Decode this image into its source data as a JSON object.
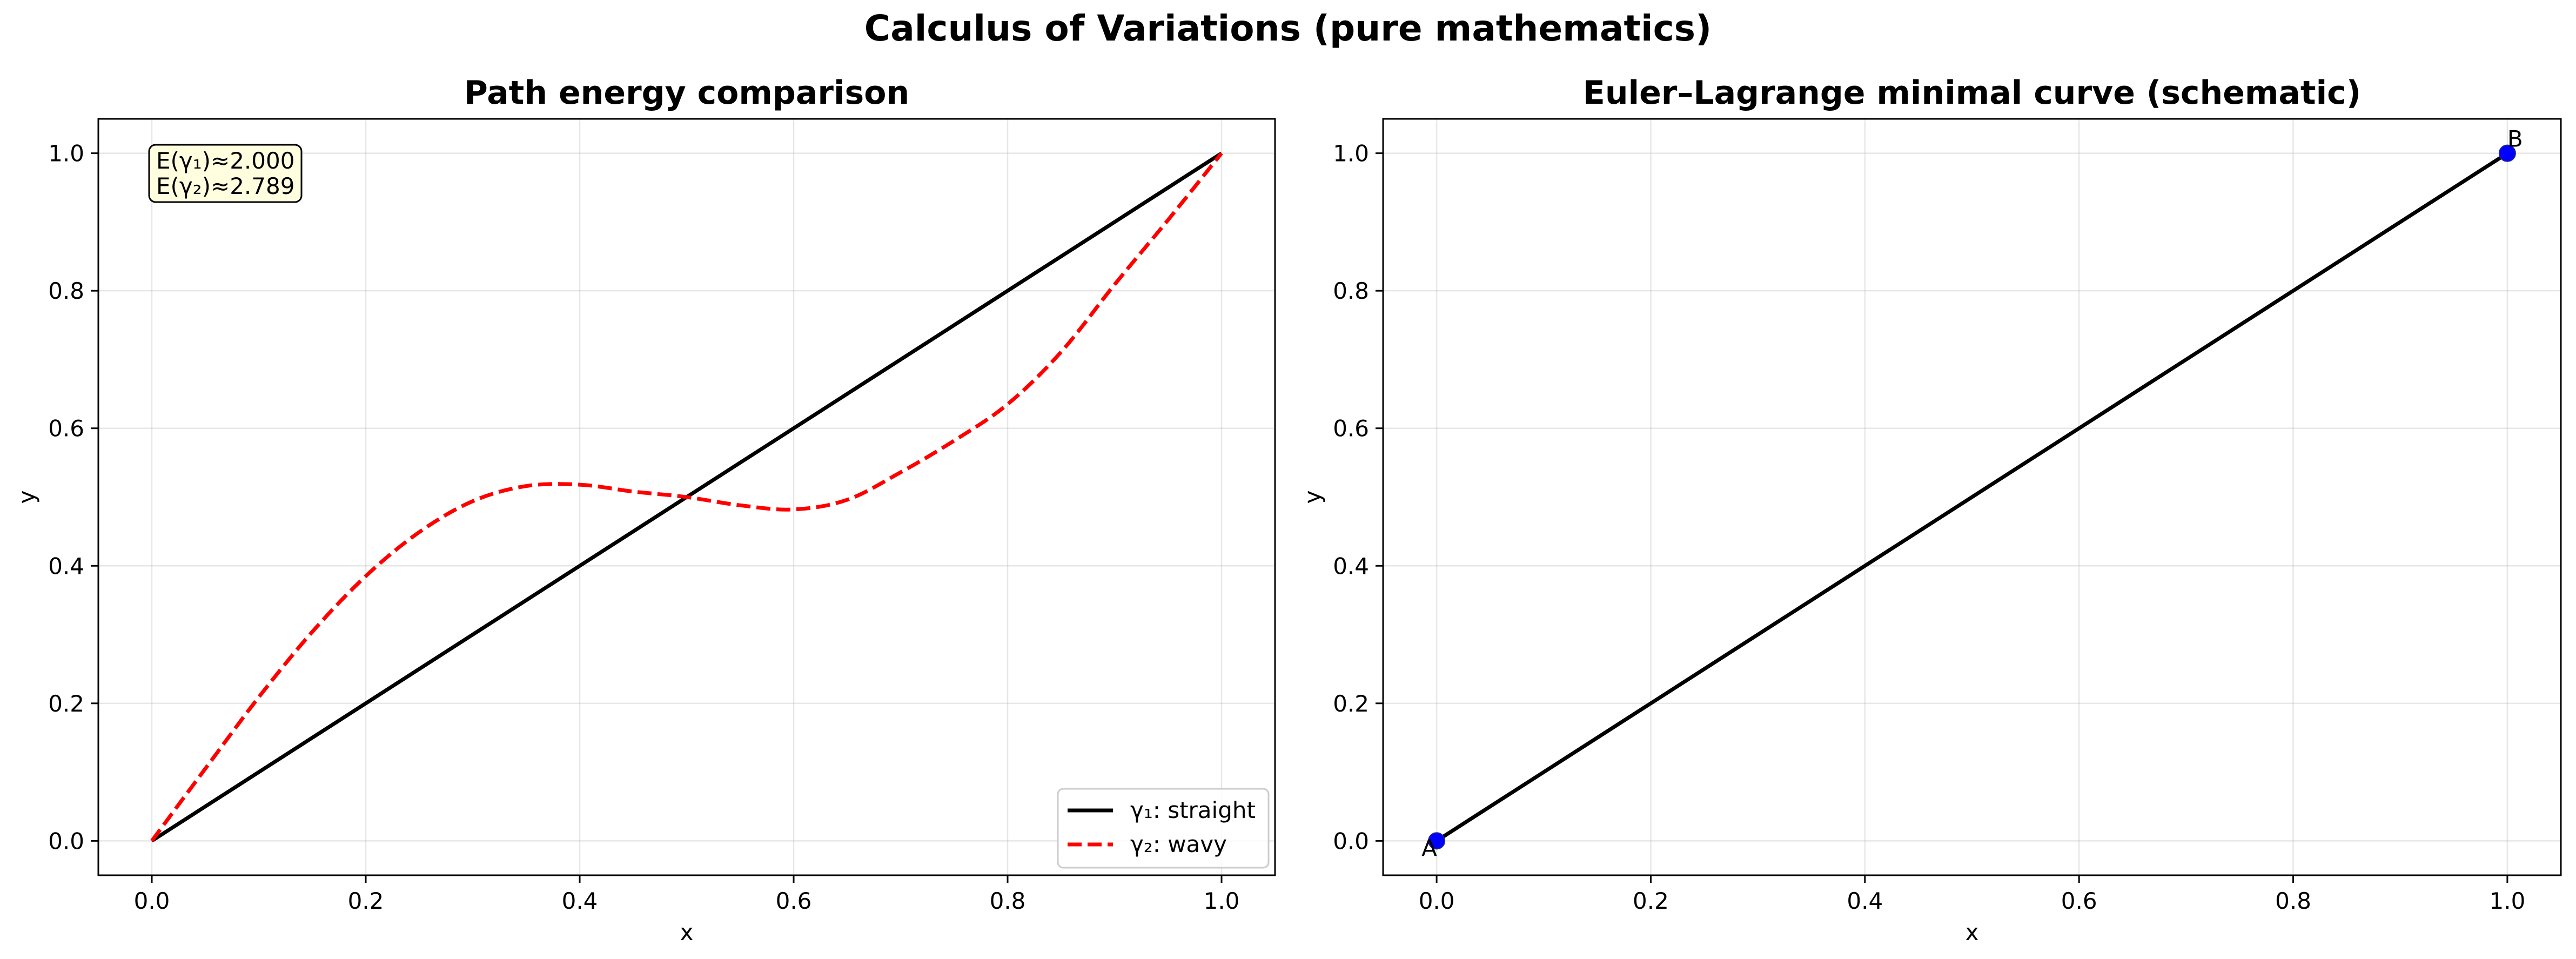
{
  "figure": {
    "suptitle": "Calculus of Variations (pure mathematics)"
  },
  "chart_data": [
    {
      "type": "line",
      "title": "Path energy comparison",
      "xlabel": "x",
      "ylabel": "y",
      "xlim": [
        -0.05,
        1.05
      ],
      "ylim": [
        -0.05,
        1.05
      ],
      "xticks": [
        0.0,
        0.2,
        0.4,
        0.6,
        0.8,
        1.0
      ],
      "yticks": [
        0.0,
        0.2,
        0.4,
        0.6,
        0.8,
        1.0
      ],
      "tick_labels": [
        "0.0",
        "0.2",
        "0.4",
        "0.6",
        "0.8",
        "1.0"
      ],
      "grid": true,
      "annotation": {
        "lines": [
          "E(γ₁)≈2.000",
          "E(γ₂)≈2.789"
        ],
        "position": "top-left"
      },
      "legend": {
        "position": "bottom-right"
      },
      "series": [
        {
          "name": "γ₁: straight",
          "color": "#000000",
          "style": "solid",
          "x": [
            0.0,
            0.05,
            0.1,
            0.15,
            0.2,
            0.25,
            0.3,
            0.35,
            0.4,
            0.45,
            0.5,
            0.55,
            0.6,
            0.65,
            0.7,
            0.75,
            0.8,
            0.85,
            0.9,
            0.95,
            1.0
          ],
          "y": [
            0.0,
            0.05,
            0.1,
            0.15,
            0.2,
            0.25,
            0.3,
            0.35,
            0.4,
            0.45,
            0.5,
            0.55,
            0.6,
            0.65,
            0.7,
            0.75,
            0.8,
            0.85,
            0.9,
            0.95,
            1.0
          ]
        },
        {
          "name": "γ₂: wavy",
          "color": "#ff0000",
          "style": "dashed",
          "x": [
            0.0,
            0.05,
            0.1,
            0.15,
            0.2,
            0.25,
            0.3,
            0.35,
            0.4,
            0.45,
            0.5,
            0.55,
            0.6,
            0.65,
            0.7,
            0.75,
            0.8,
            0.85,
            0.9,
            0.95,
            1.0
          ],
          "y": [
            0.0,
            0.105,
            0.209,
            0.304,
            0.385,
            0.449,
            0.494,
            0.516,
            0.518,
            0.508,
            0.5,
            0.488,
            0.482,
            0.496,
            0.536,
            0.582,
            0.635,
            0.711,
            0.809,
            0.903,
            1.0
          ]
        }
      ]
    },
    {
      "type": "line",
      "title": "Euler–Lagrange minimal curve (schematic)",
      "xlabel": "x",
      "ylabel": "y",
      "xlim": [
        -0.05,
        1.05
      ],
      "ylim": [
        -0.05,
        1.05
      ],
      "xticks": [
        0.0,
        0.2,
        0.4,
        0.6,
        0.8,
        1.0
      ],
      "yticks": [
        0.0,
        0.2,
        0.4,
        0.6,
        0.8,
        1.0
      ],
      "tick_labels": [
        "0.0",
        "0.2",
        "0.4",
        "0.6",
        "0.8",
        "1.0"
      ],
      "grid": true,
      "series": [
        {
          "color": "#000000",
          "style": "solid",
          "x": [
            0.0,
            1.0
          ],
          "y": [
            0.0,
            1.0
          ]
        }
      ],
      "points": [
        {
          "label": "A",
          "x": 0.0,
          "y": 0.0,
          "color": "#0000ff"
        },
        {
          "label": "B",
          "x": 1.0,
          "y": 1.0,
          "color": "#0000ff"
        }
      ]
    }
  ]
}
